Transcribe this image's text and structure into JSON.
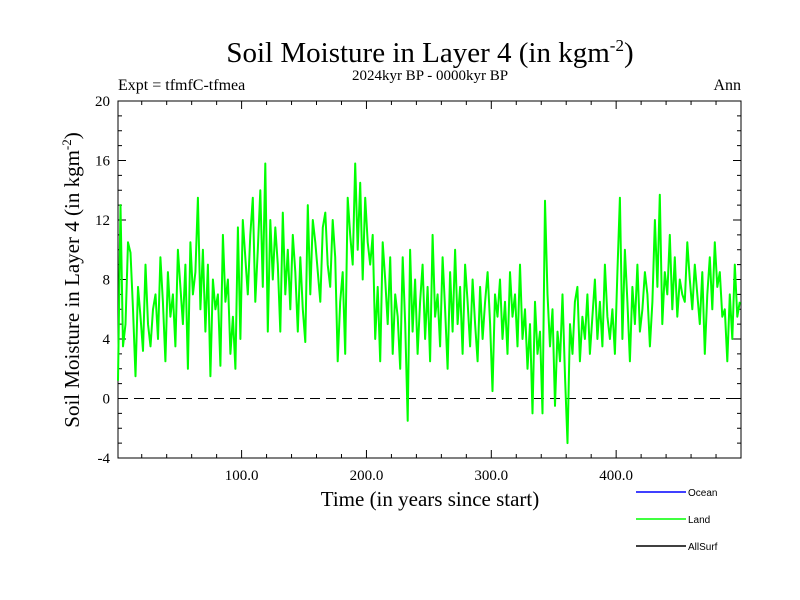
{
  "chart_data": {
    "type": "line",
    "title_main": "Soil Moisture in Layer 4 (in kgm",
    "title_sup": "-2",
    "title_close": ")",
    "subtitle": "2024kyr BP - 0000kyr BP",
    "expt_label": "Expt = tfmfC-tfmea",
    "season_label": "Ann",
    "xlabel": "Time (in years since start)",
    "ylabel_main": "Soil Moisture in Layer 4 (in kgm",
    "ylabel_sup": "-2",
    "ylabel_close": ")",
    "xlim": [
      1,
      500
    ],
    "ylim": [
      -4,
      20
    ],
    "x_ticks": [
      100,
      200,
      300,
      400
    ],
    "x_tick_labels": [
      "100.0",
      "200.0",
      "300.0",
      "400.0"
    ],
    "y_ticks": [
      -4,
      0,
      4,
      8,
      12,
      16,
      20
    ],
    "y_tick_labels": [
      "-4",
      "0",
      "4",
      "8",
      "12",
      "16",
      "20"
    ],
    "zero_line": 0,
    "legend": [
      {
        "name": "Ocean",
        "color": "#0000ff"
      },
      {
        "name": "Land",
        "color": "#00ff00"
      },
      {
        "name": "AllSurf",
        "color": "#000000"
      }
    ],
    "series": [
      {
        "name": "Land",
        "color": "#00ff00",
        "x_start": 1,
        "x_step": 2,
        "values": [
          1.2,
          13.0,
          3.5,
          5.0,
          10.5,
          9.8,
          6.0,
          1.5,
          7.5,
          5.5,
          3.2,
          9.0,
          5.0,
          3.5,
          6.0,
          7.0,
          4.0,
          9.5,
          6.5,
          2.5,
          8.5,
          5.5,
          7.0,
          3.5,
          10.0,
          7.5,
          5.0,
          9.0,
          2.0,
          10.5,
          7.0,
          8.5,
          13.5,
          6.0,
          10.0,
          4.5,
          9.0,
          1.5,
          8.0,
          6.0,
          7.0,
          2.2,
          11.0,
          6.5,
          8.0,
          3.0,
          5.5,
          2.0,
          11.5,
          4.0,
          12.0,
          9.5,
          7.0,
          11.0,
          13.5,
          6.5,
          10.0,
          14.0,
          7.5,
          15.8,
          4.5,
          12.0,
          8.0,
          11.5,
          9.0,
          4.5,
          12.5,
          7.0,
          10.0,
          6.0,
          11.0,
          8.5,
          4.5,
          9.5,
          6.0,
          3.8,
          13.0,
          7.0,
          12.0,
          10.5,
          8.5,
          6.5,
          11.5,
          12.5,
          9.0,
          7.5,
          12.0,
          9.5,
          2.5,
          6.5,
          8.5,
          3.0,
          13.5,
          11.0,
          9.0,
          15.8,
          10.0,
          14.5,
          8.0,
          13.5,
          10.5,
          9.0,
          11.0,
          4.0,
          7.5,
          2.5,
          10.5,
          8.0,
          5.0,
          9.5,
          3.0,
          7.0,
          5.5,
          2.0,
          9.5,
          5.0,
          -1.5,
          10.0,
          4.5,
          8.0,
          3.0,
          6.5,
          9.0,
          4.0,
          7.5,
          2.5,
          11.0,
          5.5,
          7.0,
          3.5,
          9.5,
          6.0,
          2.0,
          8.5,
          4.5,
          10.0,
          5.0,
          7.5,
          3.0,
          9.0,
          6.5,
          3.5,
          8.0,
          5.0,
          2.5,
          7.5,
          4.0,
          6.5,
          8.5,
          5.0,
          0.5,
          7.0,
          5.5,
          8.0,
          4.0,
          6.5,
          3.0,
          8.5,
          5.5,
          7.0,
          3.5,
          9.0,
          4.0,
          6.0,
          2.0,
          5.0,
          -1.0,
          6.5,
          3.0,
          4.5,
          -1.0,
          13.3,
          7.0,
          3.5,
          6.0,
          -0.5,
          4.5,
          2.5,
          7.0,
          1.5,
          -3.0,
          5.0,
          3.0,
          6.5,
          7.5,
          2.5,
          5.5,
          4.0,
          7.0,
          3.0,
          5.5,
          8.0,
          4.0,
          6.5,
          3.5,
          9.0,
          5.5,
          4.0,
          6.0,
          3.0,
          8.5,
          13.5,
          4.0,
          10.0,
          6.5,
          2.5,
          7.5,
          5.0,
          9.0,
          4.5,
          6.0,
          8.5,
          7.0,
          3.5,
          6.5,
          12.0,
          7.5,
          13.7,
          5.0,
          8.5,
          7.0,
          11.0,
          6.0,
          9.5,
          5.5,
          8.0,
          7.0,
          6.5,
          10.5,
          8.0,
          6.0,
          9.0,
          7.0,
          5.0,
          8.5,
          3.0,
          7.0,
          9.5,
          6.0,
          10.5,
          7.5,
          8.5,
          5.5,
          6.0,
          2.5,
          7.0,
          4.0,
          9.0,
          5.5,
          6.5
        ]
      }
    ]
  }
}
